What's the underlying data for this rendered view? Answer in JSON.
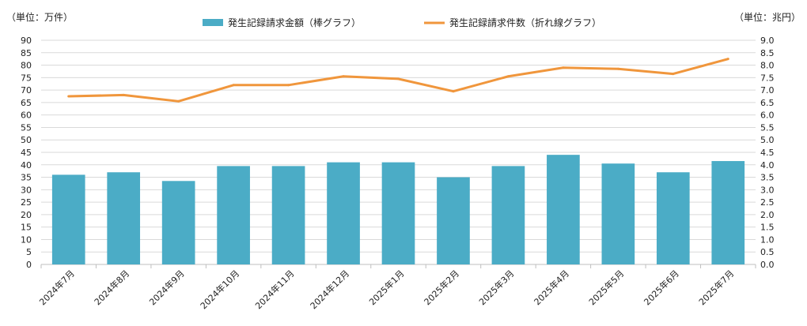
{
  "chart_data": {
    "type": "bar+line",
    "categories": [
      "2024年7月",
      "2024年8月",
      "2024年9月",
      "2024年10月",
      "2024年11月",
      "2024年12月",
      "2025年1月",
      "2025年2月",
      "2025年3月",
      "2025年4月",
      "2025年5月",
      "2025年6月",
      "2025年7月"
    ],
    "series": [
      {
        "name": "発生記録請求件数（折れ線グラフ）",
        "type": "line",
        "axis": "left",
        "color": "#f0963c",
        "values": [
          67.5,
          68,
          65.5,
          72,
          72,
          75.5,
          74.5,
          69.5,
          75.5,
          79,
          78.5,
          76.5,
          82.5
        ]
      },
      {
        "name": "発生記録請求金額（棒グラフ）",
        "type": "bar",
        "axis": "right",
        "color": "#4bacc6",
        "values": [
          3.6,
          3.7,
          3.35,
          3.95,
          3.95,
          4.1,
          4.1,
          3.5,
          3.95,
          4.4,
          4.05,
          3.7,
          4.15
        ]
      }
    ],
    "left_axis": {
      "unit_label": "（単位：万件）",
      "ylim": [
        0,
        90
      ],
      "ticks": [
        "0",
        "5",
        "10",
        "15",
        "20",
        "25",
        "30",
        "35",
        "40",
        "45",
        "50",
        "55",
        "60",
        "65",
        "70",
        "75",
        "80",
        "85",
        "90"
      ]
    },
    "right_axis": {
      "unit_label": "（単位：兆円）",
      "ylim": [
        0,
        9
      ],
      "ticks": [
        "0.0",
        "0.5",
        "1.0",
        "1.5",
        "2.0",
        "2.5",
        "3.0",
        "3.5",
        "4.0",
        "4.5",
        "5.0",
        "5.5",
        "6.0",
        "6.5",
        "7.0",
        "7.5",
        "8.0",
        "8.5",
        "9.0"
      ]
    },
    "legend": {
      "placement": "top-center",
      "bar_label": "発生記録請求金額（棒グラフ）",
      "line_label": "発生記録請求件数（折れ線グラフ）"
    },
    "grid": true
  }
}
